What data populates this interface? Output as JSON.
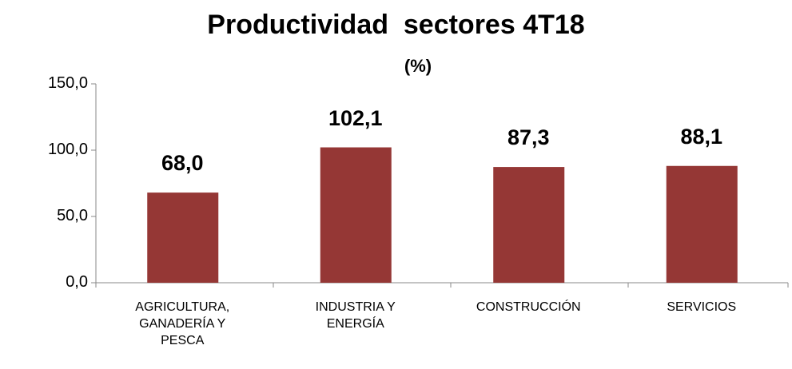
{
  "chart_data": {
    "type": "bar",
    "title": "Productividad  sectores 4T18",
    "subtitle": "(%)",
    "categories": [
      "AGRICULTURA, GANADERÍA Y PESCA",
      "INDUSTRIA Y ENERGÍA",
      "CONSTRUCCIÓN",
      "SERVICIOS"
    ],
    "values": [
      68.0,
      102.1,
      87.3,
      88.1
    ],
    "value_labels": [
      "68,0",
      "102,1",
      "87,3",
      "88,1"
    ],
    "color": "#953735",
    "ylim": [
      0,
      150
    ],
    "yticks": [
      {
        "value": 0,
        "label": "0,0"
      },
      {
        "value": 50,
        "label": "50,0"
      },
      {
        "value": 100,
        "label": "100,0"
      },
      {
        "value": 150,
        "label": "150,0"
      }
    ],
    "grid": false
  }
}
